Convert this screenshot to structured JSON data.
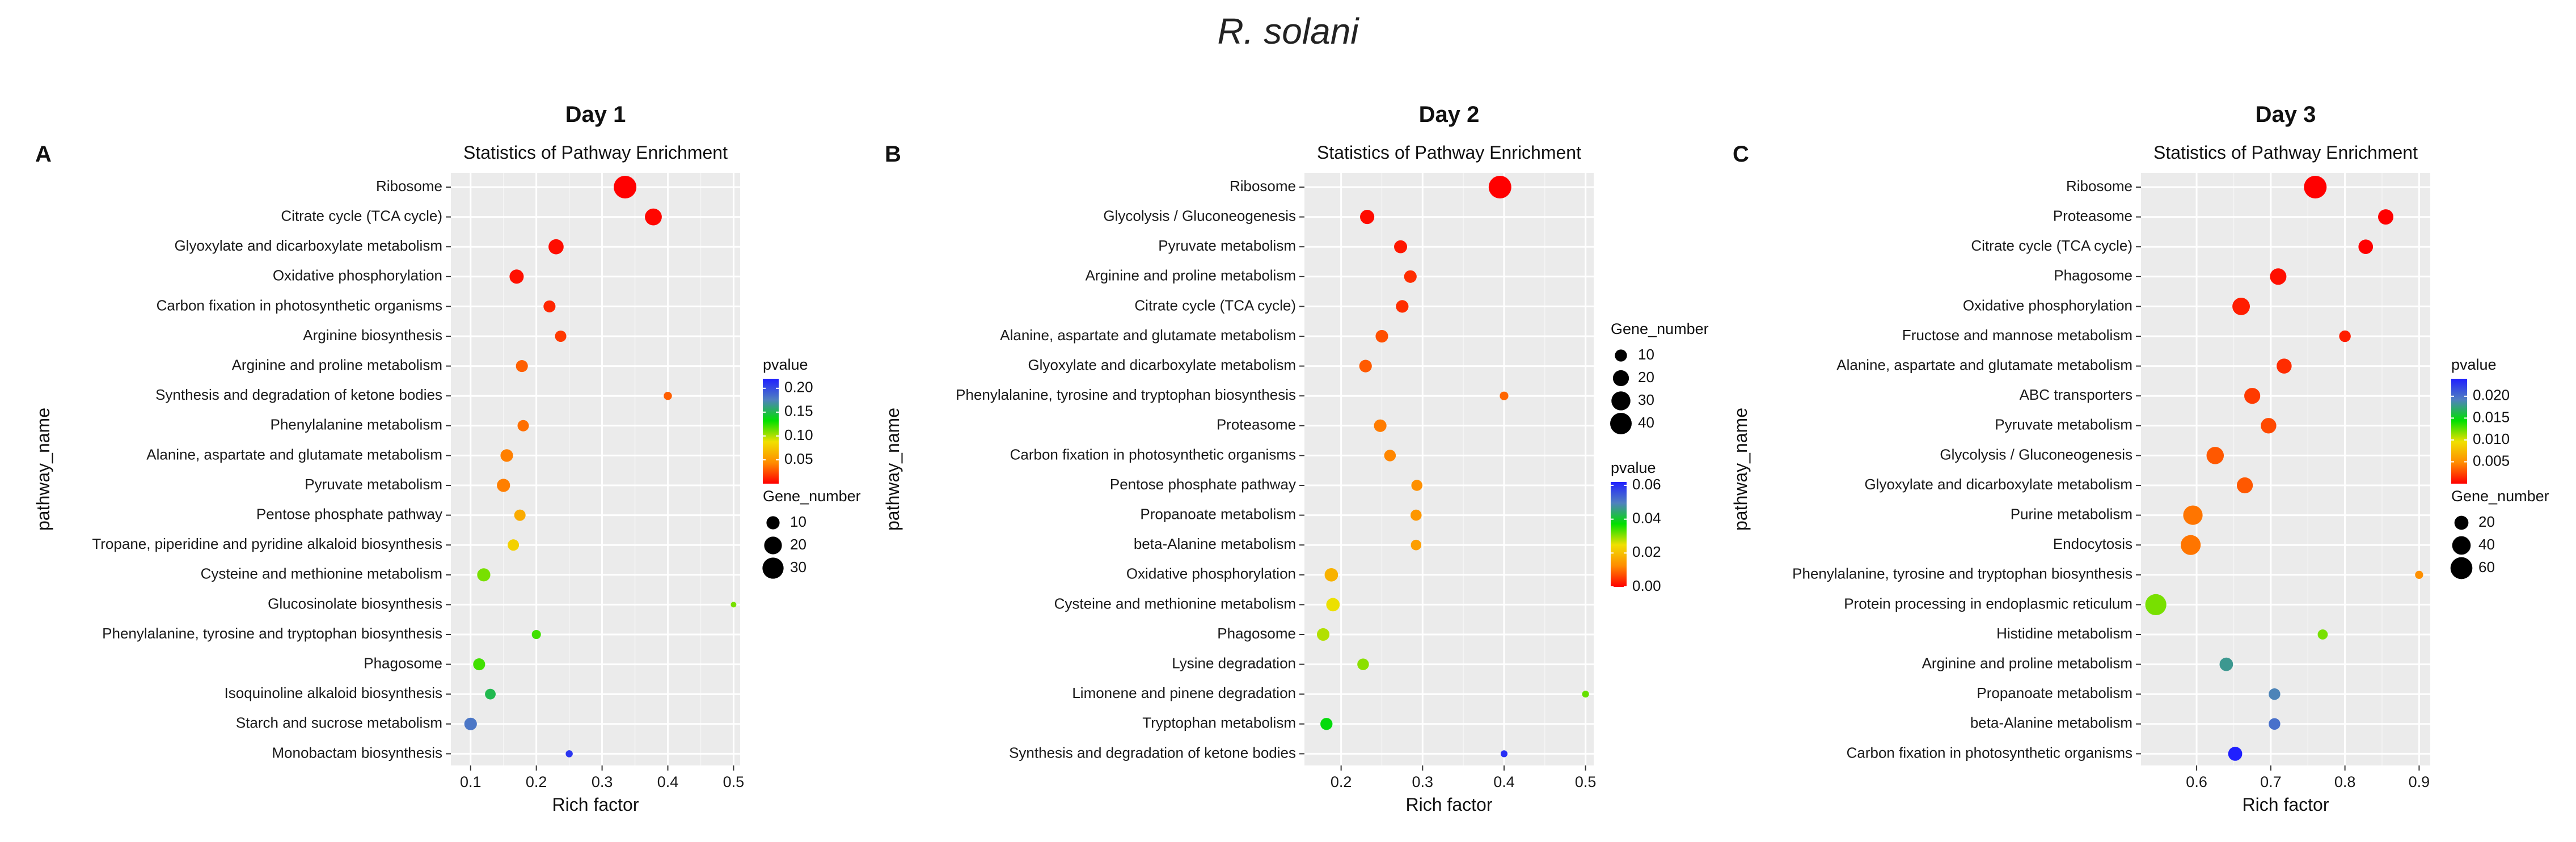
{
  "figure_title": "R. solani",
  "chart_data": [
    {
      "type": "scatter",
      "panel_letter": "A",
      "day_title": "Day 1",
      "title": "Statistics of Pathway Enrichment",
      "xlabel": "Rich factor",
      "ylabel": "pathway_name",
      "xlim": [
        0.07,
        0.51
      ],
      "x_ticks": [
        0.1,
        0.2,
        0.3,
        0.4,
        0.5
      ],
      "x_tick_labels": [
        "0.1",
        "0.2",
        "0.3",
        "0.4",
        "0.5"
      ],
      "color_legend": {
        "title": "pvalue",
        "min": 0.0,
        "max": 0.22,
        "ticks": [
          0.2,
          0.15,
          0.1,
          0.05
        ],
        "tick_labels": [
          "0.20",
          "0.15",
          "0.10",
          "0.05"
        ],
        "colors": [
          "#ff0000",
          "#ff8c00",
          "#f0e000",
          "#00e000",
          "#5080c0",
          "#2020ff"
        ]
      },
      "size_legend": {
        "title": "Gene_number",
        "values": [
          10,
          20,
          30
        ],
        "labels": [
          "10",
          "20",
          "30"
        ],
        "smin": 1,
        "smax": 35
      },
      "points": [
        {
          "pathway": "Ribosome",
          "rich_factor": 0.335,
          "pvalue": 0.0,
          "gene_number": 35
        },
        {
          "pathway": "Citrate cycle (TCA cycle)",
          "rich_factor": 0.378,
          "pvalue": 0.002,
          "gene_number": 18
        },
        {
          "pathway": "Glyoxylate and dicarboxylate metabolism",
          "rich_factor": 0.23,
          "pvalue": 0.004,
          "gene_number": 14
        },
        {
          "pathway": "Oxidative phosphorylation",
          "rich_factor": 0.17,
          "pvalue": 0.005,
          "gene_number": 12
        },
        {
          "pathway": "Carbon fixation in photosynthetic organisms",
          "rich_factor": 0.22,
          "pvalue": 0.012,
          "gene_number": 8
        },
        {
          "pathway": "Arginine biosynthesis",
          "rich_factor": 0.237,
          "pvalue": 0.018,
          "gene_number": 7
        },
        {
          "pathway": "Arginine and proline metabolism",
          "rich_factor": 0.178,
          "pvalue": 0.03,
          "gene_number": 8
        },
        {
          "pathway": "Synthesis and degradation of ketone bodies",
          "rich_factor": 0.4,
          "pvalue": 0.03,
          "gene_number": 3
        },
        {
          "pathway": "Phenylalanine metabolism",
          "rich_factor": 0.18,
          "pvalue": 0.035,
          "gene_number": 7
        },
        {
          "pathway": "Alanine, aspartate and glutamate metabolism",
          "rich_factor": 0.155,
          "pvalue": 0.04,
          "gene_number": 9
        },
        {
          "pathway": "Pyruvate metabolism",
          "rich_factor": 0.15,
          "pvalue": 0.04,
          "gene_number": 10
        },
        {
          "pathway": "Pentose phosphate pathway",
          "rich_factor": 0.175,
          "pvalue": 0.06,
          "gene_number": 7
        },
        {
          "pathway": "Tropane, piperidine and pyridine alkaloid biosynthesis",
          "rich_factor": 0.165,
          "pvalue": 0.08,
          "gene_number": 7
        },
        {
          "pathway": "Cysteine and methionine metabolism",
          "rich_factor": 0.12,
          "pvalue": 0.11,
          "gene_number": 10
        },
        {
          "pathway": "Glucosinolate biosynthesis",
          "rich_factor": 0.5,
          "pvalue": 0.11,
          "gene_number": 1
        },
        {
          "pathway": "Phenylalanine, tyrosine and tryptophan biosynthesis",
          "rich_factor": 0.2,
          "pvalue": 0.12,
          "gene_number": 4
        },
        {
          "pathway": "Phagosome",
          "rich_factor": 0.113,
          "pvalue": 0.12,
          "gene_number": 8
        },
        {
          "pathway": "Isoquinoline alkaloid biosynthesis",
          "rich_factor": 0.13,
          "pvalue": 0.15,
          "gene_number": 6
        },
        {
          "pathway": "Starch and sucrose metabolism",
          "rich_factor": 0.1,
          "pvalue": 0.18,
          "gene_number": 9
        },
        {
          "pathway": "Monobactam biosynthesis",
          "rich_factor": 0.25,
          "pvalue": 0.21,
          "gene_number": 2
        }
      ]
    },
    {
      "type": "scatter",
      "panel_letter": "B",
      "day_title": "Day 2",
      "title": "Statistics of Pathway Enrichment",
      "xlabel": "Rich factor",
      "ylabel": "pathway_name",
      "xlim": [
        0.155,
        0.51
      ],
      "x_ticks": [
        0.2,
        0.3,
        0.4,
        0.5
      ],
      "x_tick_labels": [
        "0.2",
        "0.3",
        "0.4",
        "0.5"
      ],
      "color_legend": {
        "title": "pvalue",
        "min": 0.0,
        "max": 0.062,
        "ticks": [
          0.06,
          0.04,
          0.02,
          0.0
        ],
        "tick_labels": [
          "0.06",
          "0.04",
          "0.02",
          "0.00"
        ],
        "colors": [
          "#ff0000",
          "#ff8c00",
          "#f0e000",
          "#00e000",
          "#5080c0",
          "#2020ff"
        ]
      },
      "size_legend": {
        "title": "Gene_number",
        "values": [
          10,
          20,
          30,
          40
        ],
        "labels": [
          "10",
          "20",
          "30",
          "40"
        ],
        "smin": 1,
        "smax": 45
      },
      "points": [
        {
          "pathway": "Ribosome",
          "rich_factor": 0.395,
          "pvalue": 0.0,
          "gene_number": 45
        },
        {
          "pathway": "Glycolysis / Gluconeogenesis",
          "rich_factor": 0.232,
          "pvalue": 0.001,
          "gene_number": 15
        },
        {
          "pathway": "Pyruvate metabolism",
          "rich_factor": 0.273,
          "pvalue": 0.002,
          "gene_number": 12
        },
        {
          "pathway": "Arginine and proline metabolism",
          "rich_factor": 0.285,
          "pvalue": 0.004,
          "gene_number": 11
        },
        {
          "pathway": "Citrate cycle (TCA cycle)",
          "rich_factor": 0.275,
          "pvalue": 0.004,
          "gene_number": 11
        },
        {
          "pathway": "Alanine, aspartate and glutamate metabolism",
          "rich_factor": 0.25,
          "pvalue": 0.007,
          "gene_number": 11
        },
        {
          "pathway": "Glyoxylate and dicarboxylate metabolism",
          "rich_factor": 0.23,
          "pvalue": 0.008,
          "gene_number": 11
        },
        {
          "pathway": "Phenylalanine, tyrosine and tryptophan biosynthesis",
          "rich_factor": 0.4,
          "pvalue": 0.009,
          "gene_number": 4
        },
        {
          "pathway": "Proteasome",
          "rich_factor": 0.248,
          "pvalue": 0.011,
          "gene_number": 11
        },
        {
          "pathway": "Carbon fixation in photosynthetic organisms",
          "rich_factor": 0.26,
          "pvalue": 0.012,
          "gene_number": 9
        },
        {
          "pathway": "Pentose phosphate pathway",
          "rich_factor": 0.293,
          "pvalue": 0.013,
          "gene_number": 8
        },
        {
          "pathway": "Propanoate metabolism",
          "rich_factor": 0.292,
          "pvalue": 0.014,
          "gene_number": 8
        },
        {
          "pathway": "beta-Alanine metabolism",
          "rich_factor": 0.292,
          "pvalue": 0.015,
          "gene_number": 7
        },
        {
          "pathway": "Oxidative phosphorylation",
          "rich_factor": 0.188,
          "pvalue": 0.018,
          "gene_number": 13
        },
        {
          "pathway": "Cysteine and methionine metabolism",
          "rich_factor": 0.19,
          "pvalue": 0.025,
          "gene_number": 13
        },
        {
          "pathway": "Phagosome",
          "rich_factor": 0.178,
          "pvalue": 0.028,
          "gene_number": 11
        },
        {
          "pathway": "Lysine degradation",
          "rich_factor": 0.227,
          "pvalue": 0.03,
          "gene_number": 9
        },
        {
          "pathway": "Limonene and pinene degradation",
          "rich_factor": 0.5,
          "pvalue": 0.032,
          "gene_number": 2
        },
        {
          "pathway": "Tryptophan metabolism",
          "rich_factor": 0.182,
          "pvalue": 0.038,
          "gene_number": 10
        },
        {
          "pathway": "Synthesis and degradation of ketone bodies",
          "rich_factor": 0.4,
          "pvalue": 0.06,
          "gene_number": 2
        }
      ]
    },
    {
      "type": "scatter",
      "panel_letter": "C",
      "day_title": "Day 3",
      "title": "Statistics of Pathway Enrichment",
      "xlabel": "Rich factor",
      "ylabel": "pathway_name",
      "xlim": [
        0.525,
        0.915
      ],
      "x_ticks": [
        0.6,
        0.7,
        0.8,
        0.9
      ],
      "x_tick_labels": [
        "0.6",
        "0.7",
        "0.8",
        "0.9"
      ],
      "color_legend": {
        "title": "pvalue",
        "min": 0.0,
        "max": 0.024,
        "ticks": [
          0.02,
          0.015,
          0.01,
          0.005
        ],
        "tick_labels": [
          "0.020",
          "0.015",
          "0.010",
          "0.005"
        ],
        "colors": [
          "#ff0000",
          "#ff8c00",
          "#f0e000",
          "#00e000",
          "#5080c0",
          "#2020ff"
        ]
      },
      "size_legend": {
        "title": "Gene_number",
        "values": [
          20,
          40,
          60
        ],
        "labels": [
          "20",
          "40",
          "60"
        ],
        "smin": 1,
        "smax": 65
      },
      "points": [
        {
          "pathway": "Ribosome",
          "rich_factor": 0.76,
          "pvalue": 0.0,
          "gene_number": 65
        },
        {
          "pathway": "Proteasome",
          "rich_factor": 0.855,
          "pvalue": 0.0,
          "gene_number": 25
        },
        {
          "pathway": "Citrate cycle (TCA cycle)",
          "rich_factor": 0.828,
          "pvalue": 0.0,
          "gene_number": 22
        },
        {
          "pathway": "Phagosome",
          "rich_factor": 0.71,
          "pvalue": 0.0005,
          "gene_number": 30
        },
        {
          "pathway": "Oxidative phosphorylation",
          "rich_factor": 0.66,
          "pvalue": 0.001,
          "gene_number": 35
        },
        {
          "pathway": "Fructose and mannose metabolism",
          "rich_factor": 0.8,
          "pvalue": 0.001,
          "gene_number": 12
        },
        {
          "pathway": "Alanine, aspartate and glutamate metabolism",
          "rich_factor": 0.718,
          "pvalue": 0.0015,
          "gene_number": 24
        },
        {
          "pathway": "ABC transporters",
          "rich_factor": 0.675,
          "pvalue": 0.002,
          "gene_number": 28
        },
        {
          "pathway": "Pyruvate metabolism",
          "rich_factor": 0.697,
          "pvalue": 0.0025,
          "gene_number": 26
        },
        {
          "pathway": "Glycolysis / Gluconeogenesis",
          "rich_factor": 0.625,
          "pvalue": 0.003,
          "gene_number": 34
        },
        {
          "pathway": "Glyoxylate and dicarboxylate metabolism",
          "rich_factor": 0.665,
          "pvalue": 0.003,
          "gene_number": 28
        },
        {
          "pathway": "Purine metabolism",
          "rich_factor": 0.595,
          "pvalue": 0.004,
          "gene_number": 45
        },
        {
          "pathway": "Endocytosis",
          "rich_factor": 0.592,
          "pvalue": 0.004,
          "gene_number": 48
        },
        {
          "pathway": "Phenylalanine, tyrosine and tryptophan biosynthesis",
          "rich_factor": 0.9,
          "pvalue": 0.005,
          "gene_number": 4
        },
        {
          "pathway": "Protein processing in endoplasmic reticulum",
          "rich_factor": 0.545,
          "pvalue": 0.012,
          "gene_number": 55
        },
        {
          "pathway": "Histidine metabolism",
          "rich_factor": 0.77,
          "pvalue": 0.012,
          "gene_number": 8
        },
        {
          "pathway": "Arginine and proline metabolism",
          "rich_factor": 0.64,
          "pvalue": 0.018,
          "gene_number": 18
        },
        {
          "pathway": "Propanoate metabolism",
          "rich_factor": 0.705,
          "pvalue": 0.019,
          "gene_number": 12
        },
        {
          "pathway": "beta-Alanine metabolism",
          "rich_factor": 0.705,
          "pvalue": 0.02,
          "gene_number": 12
        },
        {
          "pathway": "Carbon fixation in photosynthetic organisms",
          "rich_factor": 0.652,
          "pvalue": 0.024,
          "gene_number": 20
        }
      ]
    }
  ]
}
